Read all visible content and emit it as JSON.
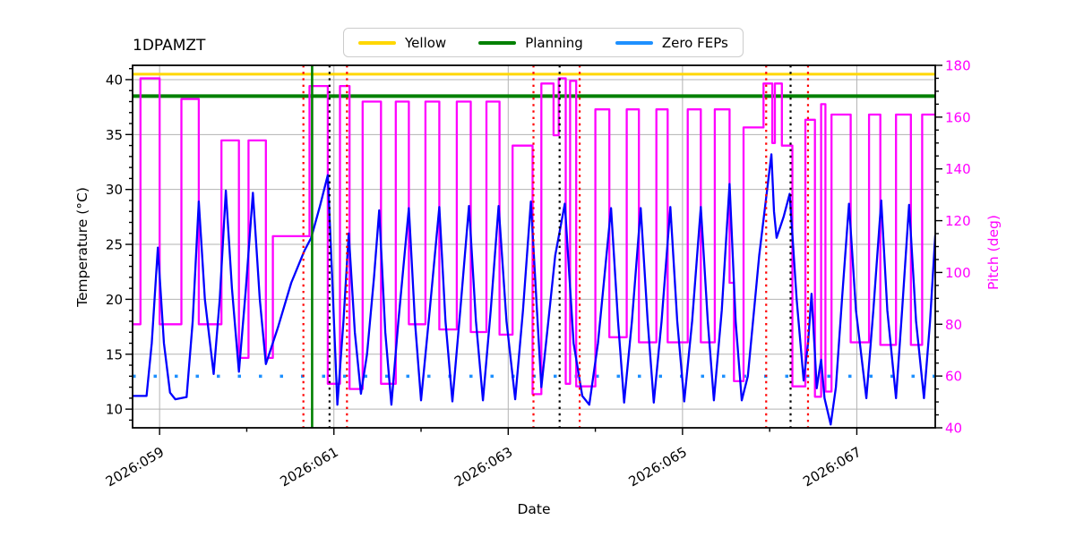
{
  "chart_data": {
    "type": "line",
    "title": "1DPAMZT",
    "xlabel": "Date",
    "xlim": [
      58.69,
      67.9
    ],
    "x_ticks": [
      {
        "day": 59,
        "label": "2026:059"
      },
      {
        "day": 61,
        "label": "2026:061"
      },
      {
        "day": 63,
        "label": "2026:063"
      },
      {
        "day": 65,
        "label": "2026:065"
      },
      {
        "day": 67,
        "label": "2026:067"
      }
    ],
    "x_minor_days": [
      60,
      62,
      64,
      66
    ],
    "left_axis": {
      "label": "Temperature (°C)",
      "ticks": [
        10,
        15,
        20,
        25,
        30,
        35,
        40
      ],
      "lim": [
        8.3,
        41.3
      ],
      "color": "#000000"
    },
    "right_axis": {
      "label": "Pitch (deg)",
      "ticks": [
        40,
        60,
        80,
        100,
        120,
        140,
        160,
        180
      ],
      "lim": [
        40,
        180
      ],
      "color": "#ff00ff"
    },
    "grid": true,
    "grid_color": "#b3b3b3",
    "legend": [
      {
        "label": "Yellow",
        "color": "#ffd700"
      },
      {
        "label": "Planning",
        "color": "#008000"
      },
      {
        "label": "Zero FEPs",
        "color": "#1e90ff"
      }
    ],
    "limit_lines": [
      {
        "name": "yellow-limit",
        "value": 40.5,
        "axis": "left",
        "color": "#ffd700",
        "style": "solid",
        "width": 3
      },
      {
        "name": "planning-limit",
        "value": 38.5,
        "axis": "left",
        "color": "#008000",
        "style": "solid",
        "width": 4
      },
      {
        "name": "zero-feps",
        "value": 13.0,
        "axis": "left",
        "color": "#1e90ff",
        "style": "dotted",
        "width": 3.5
      }
    ],
    "vlines": [
      {
        "day": 60.65,
        "color": "#ff0000",
        "style": "dotted"
      },
      {
        "day": 60.75,
        "color": "#008000",
        "style": "solid"
      },
      {
        "day": 60.95,
        "color": "#000000",
        "style": "dotted"
      },
      {
        "day": 61.15,
        "color": "#ff0000",
        "style": "dotted"
      },
      {
        "day": 63.29,
        "color": "#ff0000",
        "style": "dotted"
      },
      {
        "day": 63.59,
        "color": "#000000",
        "style": "dotted"
      },
      {
        "day": 63.82,
        "color": "#ff0000",
        "style": "dotted"
      },
      {
        "day": 65.96,
        "color": "#ff0000",
        "style": "dotted"
      },
      {
        "day": 66.24,
        "color": "#000000",
        "style": "dotted"
      },
      {
        "day": 66.44,
        "color": "#ff0000",
        "style": "dotted"
      }
    ],
    "series": [
      {
        "name": "pitch",
        "axis": "right",
        "color": "#ff00ff",
        "kind": "step",
        "segments": [
          [
            58.69,
            58.78,
            80
          ],
          [
            58.78,
            59.0,
            175
          ],
          [
            59.0,
            59.25,
            80
          ],
          [
            59.25,
            59.45,
            167
          ],
          [
            59.45,
            59.71,
            80
          ],
          [
            59.71,
            59.91,
            151
          ],
          [
            59.91,
            60.02,
            67
          ],
          [
            60.02,
            60.22,
            151
          ],
          [
            60.22,
            60.3,
            67
          ],
          [
            60.3,
            60.72,
            114
          ],
          [
            60.72,
            60.93,
            172
          ],
          [
            60.93,
            61.07,
            57
          ],
          [
            61.07,
            61.18,
            172
          ],
          [
            61.18,
            61.33,
            55
          ],
          [
            61.33,
            61.54,
            166
          ],
          [
            61.54,
            61.71,
            57
          ],
          [
            61.71,
            61.86,
            166
          ],
          [
            61.86,
            62.05,
            80
          ],
          [
            62.05,
            62.21,
            166
          ],
          [
            62.21,
            62.41,
            78
          ],
          [
            62.41,
            62.57,
            166
          ],
          [
            62.57,
            62.75,
            77
          ],
          [
            62.75,
            62.9,
            166
          ],
          [
            62.9,
            63.05,
            76
          ],
          [
            63.05,
            63.28,
            149
          ],
          [
            63.28,
            63.38,
            53
          ],
          [
            63.38,
            63.52,
            173
          ],
          [
            63.52,
            63.58,
            153
          ],
          [
            63.58,
            63.66,
            175
          ],
          [
            63.66,
            63.71,
            57
          ],
          [
            63.71,
            63.78,
            174
          ],
          [
            63.78,
            64.0,
            56
          ],
          [
            64.0,
            64.16,
            163
          ],
          [
            64.16,
            64.36,
            75
          ],
          [
            64.36,
            64.5,
            163
          ],
          [
            64.5,
            64.7,
            73
          ],
          [
            64.7,
            64.83,
            163
          ],
          [
            64.83,
            65.06,
            73
          ],
          [
            65.06,
            65.21,
            163
          ],
          [
            65.21,
            65.37,
            73
          ],
          [
            65.37,
            65.54,
            163
          ],
          [
            65.54,
            65.59,
            96
          ],
          [
            65.59,
            65.7,
            58
          ],
          [
            65.7,
            65.93,
            156
          ],
          [
            65.93,
            66.03,
            173
          ],
          [
            66.03,
            66.06,
            150
          ],
          [
            66.06,
            66.14,
            173
          ],
          [
            66.14,
            66.26,
            149
          ],
          [
            66.26,
            66.41,
            56
          ],
          [
            66.41,
            66.52,
            159
          ],
          [
            66.52,
            66.59,
            52
          ],
          [
            66.59,
            66.64,
            165
          ],
          [
            66.64,
            66.71,
            54
          ],
          [
            66.71,
            66.93,
            161
          ],
          [
            66.93,
            67.14,
            73
          ],
          [
            67.14,
            67.27,
            161
          ],
          [
            67.27,
            67.45,
            72
          ],
          [
            67.45,
            67.62,
            161
          ],
          [
            67.62,
            67.75,
            72
          ],
          [
            67.75,
            67.9,
            161
          ]
        ]
      },
      {
        "name": "temperature-1dpamzt",
        "axis": "left",
        "color": "#0000ff",
        "kind": "line",
        "points": [
          [
            58.69,
            11.2
          ],
          [
            58.85,
            11.2
          ],
          [
            58.91,
            16.0
          ],
          [
            58.98,
            24.7
          ],
          [
            59.05,
            16.0
          ],
          [
            59.12,
            11.5
          ],
          [
            59.18,
            10.9
          ],
          [
            59.31,
            11.1
          ],
          [
            59.38,
            18.0
          ],
          [
            59.45,
            28.9
          ],
          [
            59.52,
            20.0
          ],
          [
            59.62,
            13.2
          ],
          [
            59.69,
            20.0
          ],
          [
            59.76,
            29.9
          ],
          [
            59.83,
            21.0
          ],
          [
            59.91,
            13.4
          ],
          [
            59.99,
            21.0
          ],
          [
            60.07,
            29.7
          ],
          [
            60.15,
            20.0
          ],
          [
            60.22,
            14.1
          ],
          [
            60.36,
            17.5
          ],
          [
            60.51,
            21.5
          ],
          [
            60.66,
            24.4
          ],
          [
            60.74,
            25.6
          ],
          [
            60.84,
            28.5
          ],
          [
            60.93,
            31.3
          ],
          [
            60.98,
            22.0
          ],
          [
            61.04,
            10.4
          ],
          [
            61.11,
            18.0
          ],
          [
            61.17,
            26.0
          ],
          [
            61.24,
            17.0
          ],
          [
            61.31,
            11.4
          ],
          [
            61.38,
            15.0
          ],
          [
            61.46,
            22.0
          ],
          [
            61.52,
            28.1
          ],
          [
            61.59,
            17.0
          ],
          [
            61.66,
            10.4
          ],
          [
            61.74,
            18.0
          ],
          [
            61.86,
            28.3
          ],
          [
            61.93,
            18.0
          ],
          [
            62.0,
            10.8
          ],
          [
            62.1,
            19.0
          ],
          [
            62.21,
            28.4
          ],
          [
            62.28,
            18.0
          ],
          [
            62.36,
            10.7
          ],
          [
            62.45,
            19.0
          ],
          [
            62.55,
            28.5
          ],
          [
            62.63,
            18.0
          ],
          [
            62.71,
            10.8
          ],
          [
            62.8,
            19.0
          ],
          [
            62.89,
            28.5
          ],
          [
            62.98,
            18.0
          ],
          [
            63.08,
            10.9
          ],
          [
            63.17,
            19.0
          ],
          [
            63.26,
            28.9
          ],
          [
            63.33,
            19.0
          ],
          [
            63.38,
            12.0
          ],
          [
            63.46,
            18.0
          ],
          [
            63.54,
            24.0
          ],
          [
            63.65,
            28.7
          ],
          [
            63.75,
            16.0
          ],
          [
            63.85,
            11.2
          ],
          [
            63.93,
            10.4
          ],
          [
            64.03,
            16.0
          ],
          [
            64.18,
            28.3
          ],
          [
            64.26,
            18.0
          ],
          [
            64.33,
            10.6
          ],
          [
            64.42,
            18.0
          ],
          [
            64.52,
            28.3
          ],
          [
            64.6,
            18.0
          ],
          [
            64.67,
            10.6
          ],
          [
            64.76,
            18.0
          ],
          [
            64.86,
            28.4
          ],
          [
            64.94,
            18.0
          ],
          [
            65.02,
            10.7
          ],
          [
            65.11,
            18.0
          ],
          [
            65.21,
            28.4
          ],
          [
            65.29,
            18.0
          ],
          [
            65.36,
            10.8
          ],
          [
            65.45,
            19.0
          ],
          [
            65.54,
            30.5
          ],
          [
            65.61,
            18.0
          ],
          [
            65.68,
            10.8
          ],
          [
            65.75,
            13.0
          ],
          [
            65.88,
            24.0
          ],
          [
            66.02,
            33.2
          ],
          [
            66.05,
            28.0
          ],
          [
            66.08,
            25.6
          ],
          [
            66.16,
            27.5
          ],
          [
            66.23,
            29.6
          ],
          [
            66.31,
            20.0
          ],
          [
            66.39,
            12.6
          ],
          [
            66.44,
            16.0
          ],
          [
            66.48,
            20.5
          ],
          [
            66.52,
            15.0
          ],
          [
            66.54,
            11.9
          ],
          [
            66.57,
            13.5
          ],
          [
            66.59,
            14.5
          ],
          [
            66.63,
            11.0
          ],
          [
            66.7,
            8.6
          ],
          [
            66.76,
            12.0
          ],
          [
            66.83,
            20.0
          ],
          [
            66.91,
            28.7
          ],
          [
            66.99,
            19.0
          ],
          [
            67.11,
            11.0
          ],
          [
            67.19,
            19.0
          ],
          [
            67.28,
            29.0
          ],
          [
            67.35,
            19.0
          ],
          [
            67.45,
            11.0
          ],
          [
            67.52,
            19.0
          ],
          [
            67.6,
            28.6
          ],
          [
            67.68,
            18.0
          ],
          [
            67.77,
            11.0
          ],
          [
            67.84,
            18.0
          ],
          [
            67.9,
            25.8
          ]
        ]
      }
    ]
  }
}
